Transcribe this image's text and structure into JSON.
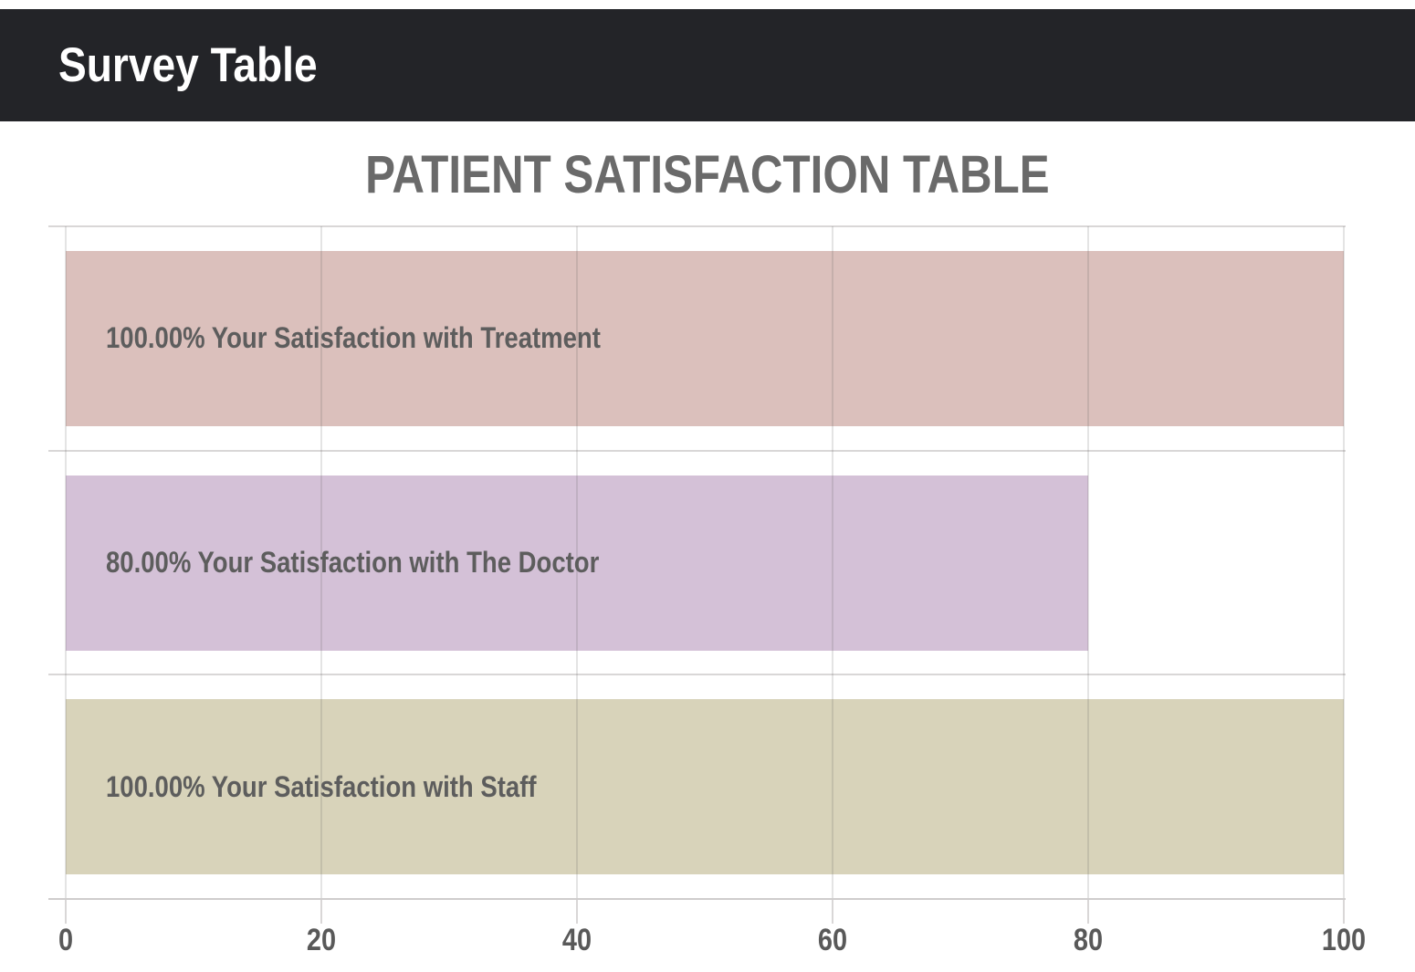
{
  "header": {
    "title": "Survey Table"
  },
  "chart_data": {
    "type": "bar",
    "orientation": "horizontal",
    "title": "PATIENT SATISFACTION TABLE",
    "categories": [
      "Your Satisfaction with Treatment",
      "Your Satisfaction with The Doctor",
      "Your Satisfaction with Staff"
    ],
    "values": [
      100,
      80,
      100
    ],
    "bar_labels": [
      "100.00% Your Satisfaction with Treatment",
      "80.00% Your Satisfaction with The Doctor",
      "100.00% Your Satisfaction with Staff"
    ],
    "bar_colors": [
      "#dbc0bc",
      "#d4c1d7",
      "#d8d3ba"
    ],
    "xlabel": "",
    "ylabel": "",
    "xlim": [
      0,
      100
    ],
    "x_ticks": [
      0,
      20,
      40,
      60,
      80,
      100
    ],
    "grid": true,
    "legend": false
  },
  "colors": {
    "header_bg": "#232428",
    "header_text": "#ffffff",
    "chart_title_text": "#6a6a6a",
    "bar_label_text": "#5d5d5d",
    "tick_label_text": "#595959",
    "gridline": "#d9d7d7",
    "axis_line": "#cfcdcd"
  }
}
